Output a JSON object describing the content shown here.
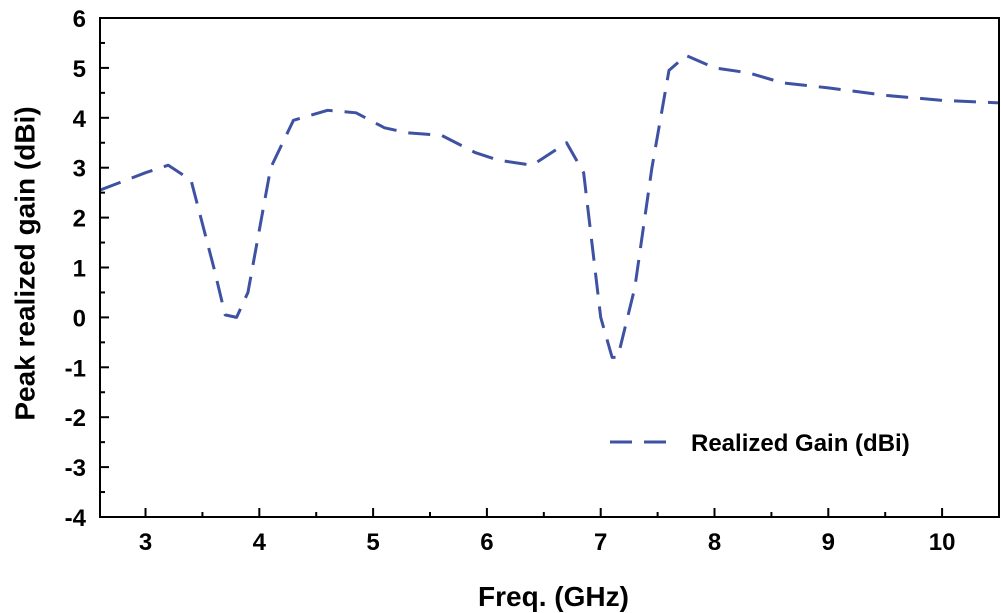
{
  "chart_data": {
    "type": "line",
    "title": "",
    "xlabel": "Freq. (GHz)",
    "ylabel": "Peak realized gain (dBi)",
    "xlim": [
      2.6,
      10.5
    ],
    "ylim": [
      -4,
      6
    ],
    "xticks": [
      3,
      4,
      5,
      6,
      7,
      8,
      9,
      10
    ],
    "yticks": [
      6,
      5,
      4,
      3,
      2,
      1,
      0,
      -1,
      -2,
      -3,
      -4
    ],
    "x_minor_step": 0.5,
    "y_minor_step": 0.5,
    "grid": false,
    "legend_position": "bottom-right",
    "series": [
      {
        "name": "Realized Gain (dBi)",
        "color": "#3F51A3",
        "line_style": "dashed",
        "x": [
          2.6,
          3.0,
          3.2,
          3.4,
          3.6,
          3.7,
          3.8,
          3.9,
          4.1,
          4.3,
          4.6,
          4.85,
          5.1,
          5.3,
          5.6,
          5.9,
          6.1,
          6.4,
          6.7,
          6.85,
          7.0,
          7.1,
          7.15,
          7.3,
          7.45,
          7.6,
          7.75,
          8.0,
          8.3,
          8.6,
          9.0,
          9.5,
          10.0,
          10.5
        ],
        "values": [
          2.55,
          2.9,
          3.05,
          2.75,
          1.0,
          0.05,
          0.0,
          0.5,
          3.0,
          3.95,
          4.15,
          4.1,
          3.8,
          3.7,
          3.65,
          3.3,
          3.15,
          3.05,
          3.5,
          2.9,
          0.0,
          -0.8,
          -0.8,
          0.6,
          3.0,
          4.95,
          5.25,
          5.0,
          4.9,
          4.7,
          4.6,
          4.45,
          4.35,
          4.3
        ]
      }
    ]
  }
}
